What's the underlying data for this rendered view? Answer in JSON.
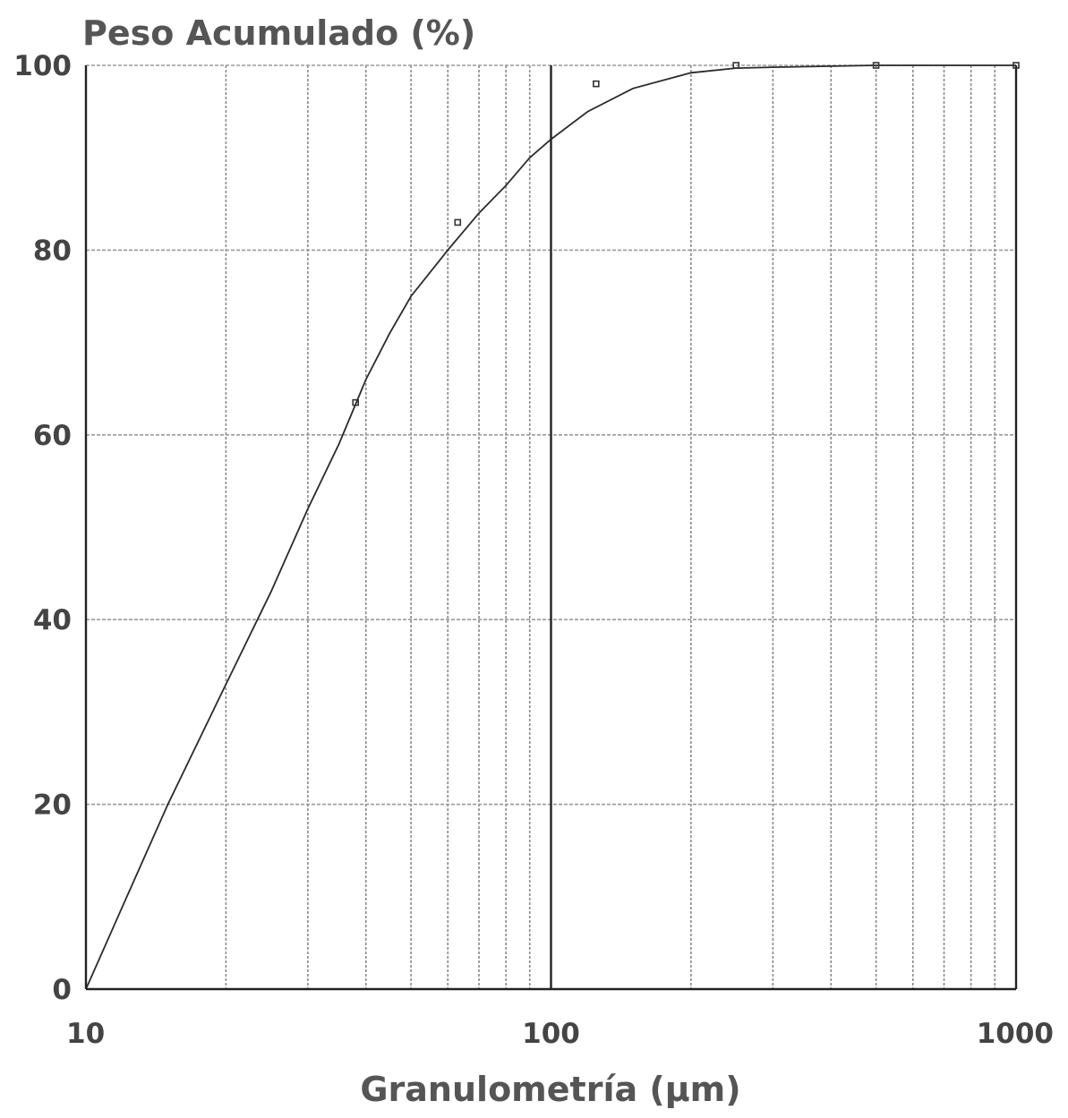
{
  "chart_data": {
    "type": "line",
    "ylabel": "Peso Acumulado (%)",
    "xlabel": "Granulometría (µm)",
    "x_scale": "log",
    "xlim": [
      10,
      1000
    ],
    "ylim": [
      0,
      100
    ],
    "x_ticks": [
      {
        "value": 10,
        "label": "10"
      },
      {
        "value": 100,
        "label": "100"
      },
      {
        "value": 1000,
        "label": "1000"
      }
    ],
    "y_ticks": [
      {
        "value": 0,
        "label": "0"
      },
      {
        "value": 20,
        "label": "20"
      },
      {
        "value": 40,
        "label": "40"
      },
      {
        "value": 60,
        "label": "60"
      },
      {
        "value": 80,
        "label": "80"
      },
      {
        "value": 100,
        "label": "100"
      }
    ],
    "grid": true,
    "series": [
      {
        "x": [
          10,
          12,
          15,
          20,
          25,
          30,
          35,
          40,
          45,
          50,
          60,
          70,
          80,
          90,
          100,
          120,
          150,
          200,
          250,
          300,
          500,
          1000
        ],
        "values": [
          0,
          9,
          20,
          33,
          43,
          52,
          59,
          66,
          71,
          75,
          80,
          84,
          87,
          90,
          92,
          95,
          97.5,
          99.2,
          99.7,
          99.8,
          100,
          100
        ]
      }
    ],
    "markers": {
      "x": [
        38,
        63,
        125,
        250,
        500,
        1000
      ],
      "values": [
        63.5,
        83,
        98,
        100,
        100,
        100
      ]
    }
  }
}
